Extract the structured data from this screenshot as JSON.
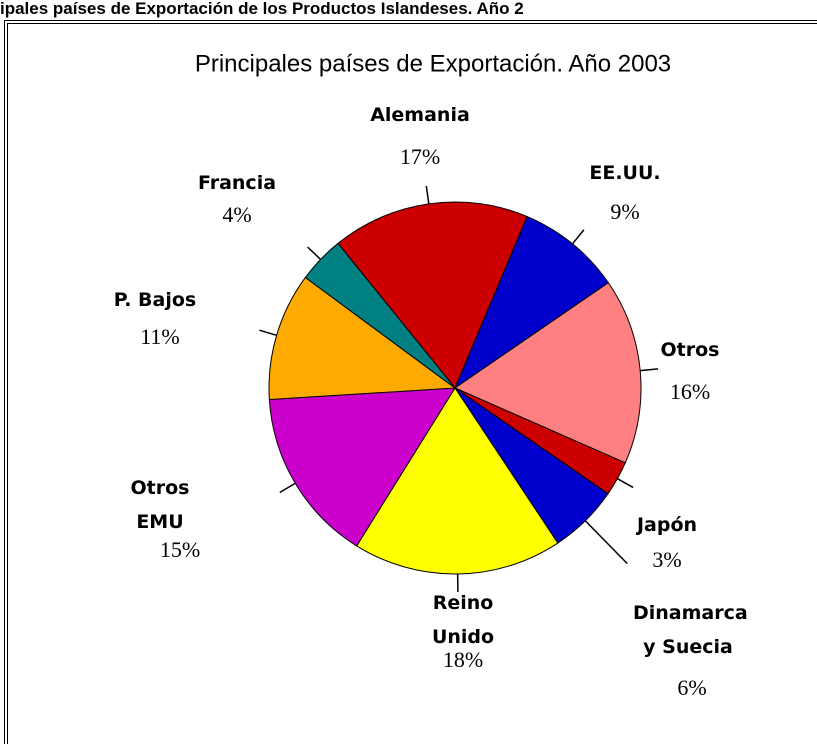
{
  "header": {
    "title": "ipales países de Exportación de los Productos Islandeses. Año 2"
  },
  "chart_data": {
    "type": "pie",
    "title": "Principales países de Exportación. Año 2003",
    "categories": [
      "Alemania",
      "EE.UU.",
      "Otros",
      "Japón",
      "Dinamarca y Suecia",
      "Reino Unido",
      "Otros EMU",
      "P. Bajos",
      "Francia"
    ],
    "values": [
      17,
      9,
      16,
      3,
      6,
      18,
      15,
      11,
      4
    ],
    "value_labels": [
      "17%",
      "9%",
      "16%",
      "3%",
      "6%",
      "18%",
      "15%",
      "11%",
      "4%"
    ],
    "colors": [
      "#cc0000",
      "#0000cc",
      "#ff8080",
      "#cc0000",
      "#0000cc",
      "#ffff00",
      "#cc00cc",
      "#ffaa00",
      "#008080"
    ]
  }
}
